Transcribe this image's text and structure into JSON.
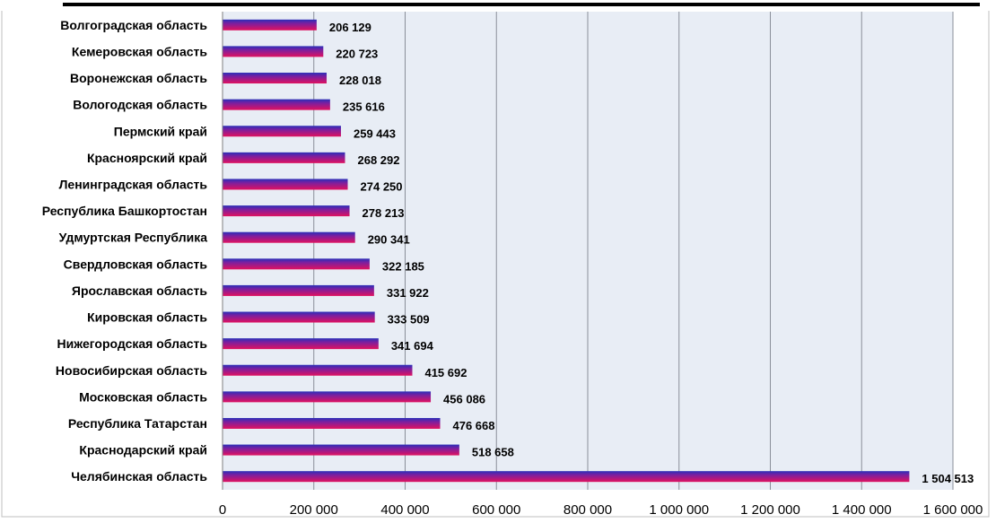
{
  "chart_data": {
    "type": "bar",
    "orientation": "horizontal",
    "categories": [
      "Волгоградская область",
      "Кемеровская область",
      "Воронежская область",
      "Вологодская область",
      "Пермский край",
      "Красноярский край",
      "Ленинградская область",
      "Республика Башкортостан",
      "Удмуртская Республика",
      "Свердловская область",
      "Ярославская область",
      "Кировская область",
      "Нижегородская область",
      "Новосибирская область",
      "Московская область",
      "Республика Татарстан",
      "Краснодарский край",
      "Челябинская область"
    ],
    "values": [
      206129,
      220723,
      228018,
      235616,
      259443,
      268292,
      274250,
      278213,
      290341,
      322185,
      331922,
      333509,
      341694,
      415692,
      456086,
      476668,
      518658,
      1504513
    ],
    "value_labels": [
      "206 129",
      "220 723",
      "228 018",
      "235 616",
      "259 443",
      "268 292",
      "274 250",
      "278 213",
      "290 341",
      "322 185",
      "331 922",
      "333 509",
      "341 694",
      "415 692",
      "456 086",
      "476 668",
      "518 658",
      "1 504 513"
    ],
    "xlim": [
      0,
      1600000
    ],
    "x_ticks": [
      0,
      200000,
      400000,
      600000,
      800000,
      1000000,
      1200000,
      1400000,
      1600000
    ],
    "x_tick_labels": [
      "0",
      "200 000",
      "400 000",
      "600 000",
      "800 000",
      "1 000 000",
      "1 200 000",
      "1 400 000",
      "1 600 000"
    ],
    "grid": true,
    "legend": "none",
    "title": "",
    "xlabel": "",
    "ylabel": "",
    "colors": {
      "bar_top": "#2a2fb8",
      "bar_bottom": "#e0115f",
      "plot_background": "#e8edf5",
      "grid": "#8a8f99"
    }
  }
}
